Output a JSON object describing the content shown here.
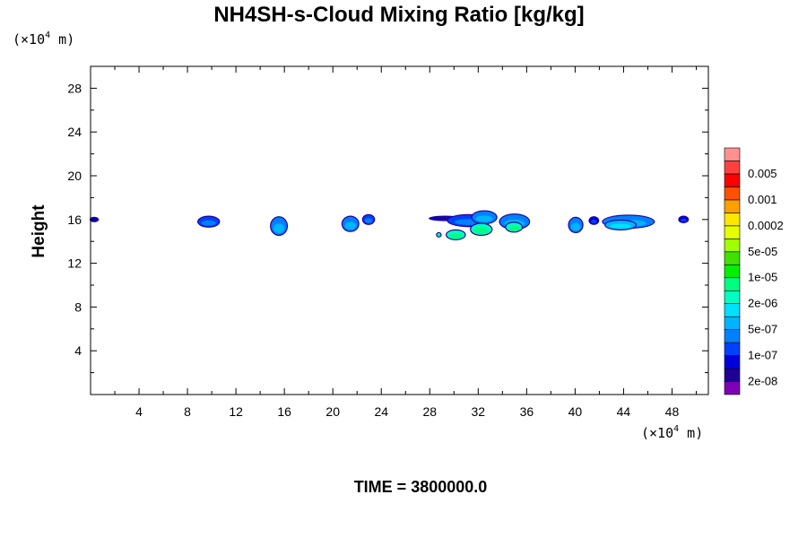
{
  "chart_data": {
    "type": "heatmap",
    "title": "NH4SH-s-Cloud Mixing Ratio [kg/kg]",
    "ylabel": "Height",
    "x_unit_prefix": "(×10",
    "x_unit_exp": "4",
    "x_unit_suffix": " m)",
    "y_unit_prefix": "(×10",
    "y_unit_exp": "4",
    "y_unit_suffix": " m)",
    "xlim": [
      0,
      51
    ],
    "ylim": [
      0,
      30
    ],
    "x_ticks": [
      4,
      8,
      12,
      16,
      20,
      24,
      28,
      32,
      36,
      40,
      44,
      48
    ],
    "y_ticks": [
      4,
      8,
      12,
      16,
      20,
      24,
      28
    ],
    "time_label": "TIME = 3800000.0",
    "colorbar": {
      "colors": [
        "#7d00b4",
        "#1e0096",
        "#0000dc",
        "#0040ff",
        "#0080ff",
        "#00b4ff",
        "#00e0ff",
        "#00ffc0",
        "#00ff80",
        "#00f000",
        "#40e000",
        "#a0ff00",
        "#e6ff00",
        "#ffe600",
        "#ffa000",
        "#ff5000",
        "#ff0000",
        "#ff4040",
        "#ff9090"
      ],
      "labels": [
        "2e-08",
        "1e-07",
        "5e-07",
        "2e-06",
        "1e-05",
        "5e-05",
        "0.0002",
        "0.001",
        "0.005"
      ]
    },
    "cloud_blobs": [
      {
        "x0": 0.0,
        "x1": 0.6,
        "y": 16.0,
        "h": 0.3,
        "level": 1
      },
      {
        "x0": 8.9,
        "x1": 10.6,
        "y": 15.8,
        "h": 0.9,
        "level": 4
      },
      {
        "x0": 14.9,
        "x1": 16.2,
        "y": 15.4,
        "h": 1.6,
        "level": 5
      },
      {
        "x0": 20.8,
        "x1": 22.1,
        "y": 15.6,
        "h": 1.3,
        "level": 5
      },
      {
        "x0": 22.5,
        "x1": 23.4,
        "y": 16.0,
        "h": 0.8,
        "level": 4
      },
      {
        "x0": 28.0,
        "x1": 30.5,
        "y": 16.1,
        "h": 0.3,
        "level": 1
      },
      {
        "x0": 29.5,
        "x1": 33.0,
        "y": 15.9,
        "h": 1.0,
        "level": 4
      },
      {
        "x0": 31.5,
        "x1": 33.5,
        "y": 16.2,
        "h": 1.1,
        "level": 5
      },
      {
        "x0": 33.8,
        "x1": 36.2,
        "y": 15.8,
        "h": 1.3,
        "level": 5
      },
      {
        "x0": 29.4,
        "x1": 30.9,
        "y": 14.6,
        "h": 0.8,
        "level": 8
      },
      {
        "x0": 31.4,
        "x1": 33.1,
        "y": 15.1,
        "h": 1.0,
        "level": 8
      },
      {
        "x0": 34.3,
        "x1": 35.6,
        "y": 15.3,
        "h": 0.8,
        "level": 8
      },
      {
        "x0": 28.6,
        "x1": 28.9,
        "y": 14.6,
        "h": 0.3,
        "level": 8
      },
      {
        "x0": 39.5,
        "x1": 40.6,
        "y": 15.5,
        "h": 1.3,
        "level": 5
      },
      {
        "x0": 41.2,
        "x1": 41.9,
        "y": 15.9,
        "h": 0.6,
        "level": 3
      },
      {
        "x0": 42.3,
        "x1": 46.5,
        "y": 15.8,
        "h": 1.1,
        "level": 5
      },
      {
        "x0": 42.5,
        "x1": 45.0,
        "y": 15.5,
        "h": 0.8,
        "level": 6
      },
      {
        "x0": 48.6,
        "x1": 49.3,
        "y": 16.0,
        "h": 0.5,
        "level": 3
      }
    ]
  }
}
